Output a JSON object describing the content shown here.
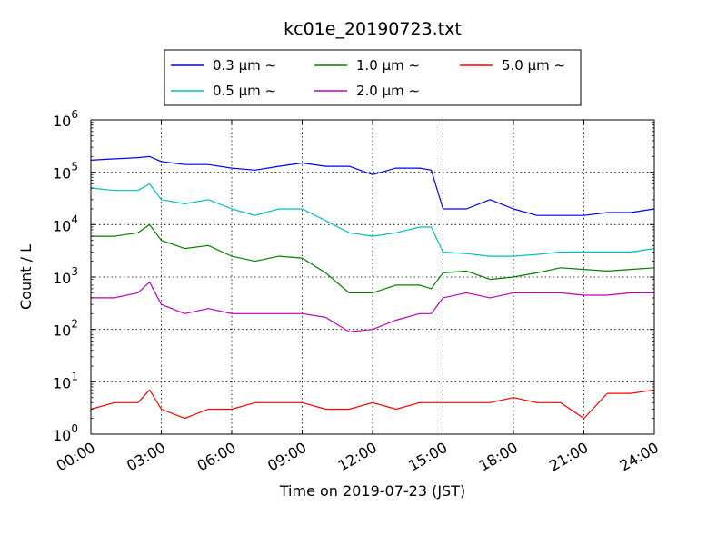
{
  "chart_data": {
    "type": "line",
    "title": "kc01e_20190723.txt",
    "xlabel": "Time on 2019-07-23 (JST)",
    "ylabel": "Count / L",
    "yscale": "log",
    "ylim": [
      1,
      1000000
    ],
    "xlim_hours": [
      0,
      24
    ],
    "x_tick_labels": [
      "00:00",
      "03:00",
      "06:00",
      "09:00",
      "12:00",
      "15:00",
      "18:00",
      "21:00",
      "24:00"
    ],
    "y_tick_labels": [
      {
        "base": "10",
        "exp": "0"
      },
      {
        "base": "10",
        "exp": "1"
      },
      {
        "base": "10",
        "exp": "2"
      },
      {
        "base": "10",
        "exp": "3"
      },
      {
        "base": "10",
        "exp": "4"
      },
      {
        "base": "10",
        "exp": "5"
      },
      {
        "base": "10",
        "exp": "6"
      }
    ],
    "grid": true,
    "legend_position": "top",
    "x_hours": [
      0,
      1,
      2,
      2.5,
      3,
      4,
      5,
      6,
      7,
      8,
      9,
      10,
      11,
      12,
      13,
      14,
      14.5,
      15,
      16,
      17,
      18,
      19,
      20,
      21,
      22,
      23,
      24
    ],
    "series": [
      {
        "name": "0.3 μm ∼",
        "color": "#0000ff",
        "values": [
          170000,
          180000,
          190000,
          200000,
          160000,
          140000,
          140000,
          120000,
          110000,
          130000,
          150000,
          130000,
          130000,
          90000,
          120000,
          120000,
          110000,
          20000,
          20000,
          30000,
          20000,
          15000,
          15000,
          15000,
          17000,
          17000,
          20000
        ]
      },
      {
        "name": "0.5 μm ∼",
        "color": "#00bfbf",
        "values": [
          50000,
          45000,
          45000,
          60000,
          30000,
          25000,
          30000,
          20000,
          15000,
          20000,
          20000,
          12000,
          7000,
          6000,
          7000,
          9000,
          9000,
          3000,
          2800,
          2500,
          2500,
          2700,
          3000,
          3000,
          3000,
          3000,
          3500
        ]
      },
      {
        "name": "1.0 μm ∼",
        "color": "#008000",
        "values": [
          6000,
          6000,
          7000,
          10000,
          5000,
          3500,
          4000,
          2500,
          2000,
          2500,
          2300,
          1200,
          500,
          500,
          700,
          700,
          600,
          1200,
          1300,
          900,
          1000,
          1200,
          1500,
          1400,
          1300,
          1400,
          1500
        ]
      },
      {
        "name": "2.0 μm ∼",
        "color": "#bf00bf",
        "values": [
          400,
          400,
          500,
          800,
          300,
          200,
          250,
          200,
          200,
          200,
          200,
          170,
          90,
          100,
          150,
          200,
          200,
          400,
          500,
          400,
          500,
          500,
          500,
          450,
          450,
          500,
          500
        ]
      },
      {
        "name": "5.0 μm ∼",
        "color": "#ff0000",
        "values": [
          3,
          4,
          4,
          7,
          3,
          2,
          3,
          3,
          4,
          4,
          4,
          3,
          3,
          4,
          3,
          4,
          4,
          4,
          4,
          4,
          5,
          4,
          4,
          2,
          6,
          6,
          7
        ]
      }
    ]
  }
}
